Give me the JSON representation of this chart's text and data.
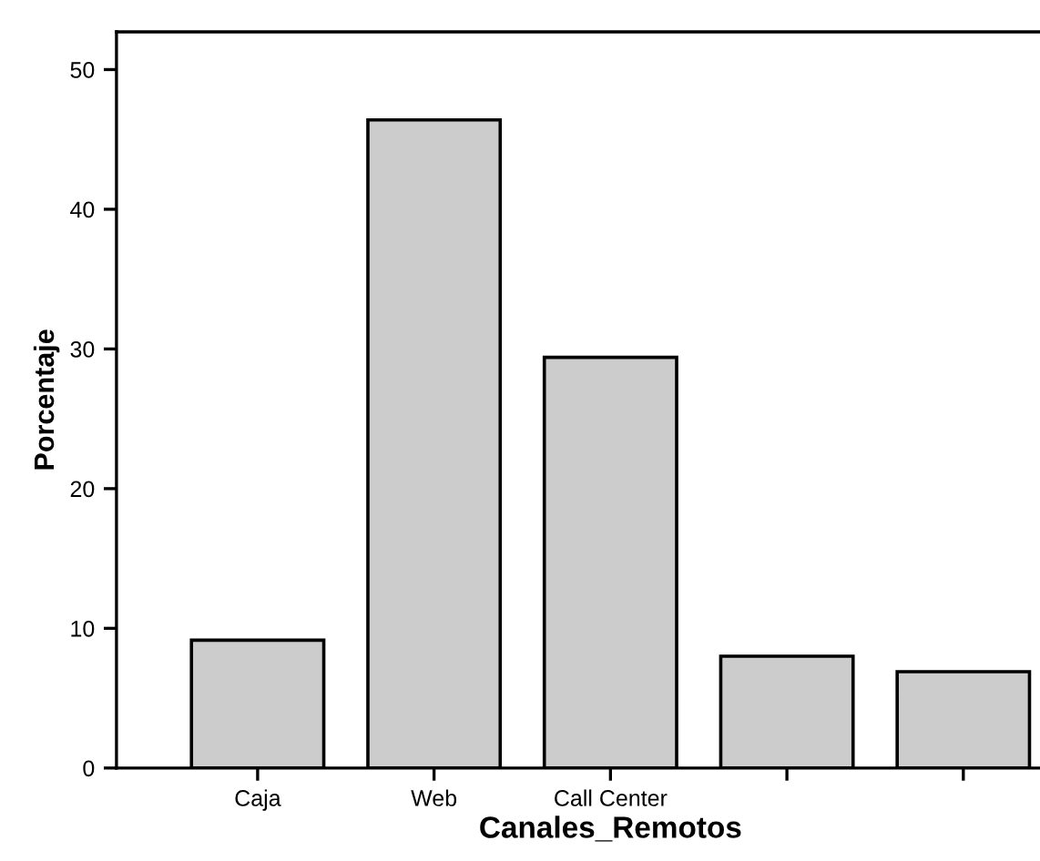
{
  "chart_data": {
    "type": "bar",
    "xlabel": "Canales_Remotos",
    "ylabel": "Porcentaje",
    "categories": [
      "Caja",
      "Web",
      "Call Center",
      null,
      null
    ],
    "values": [
      9.15,
      46.4,
      29.4,
      8.0,
      6.9
    ],
    "color": "#cccccc",
    "ylim": [
      0,
      52.7
    ],
    "yticks": [
      0,
      10,
      20,
      30,
      40,
      50
    ],
    "grid": false
  }
}
